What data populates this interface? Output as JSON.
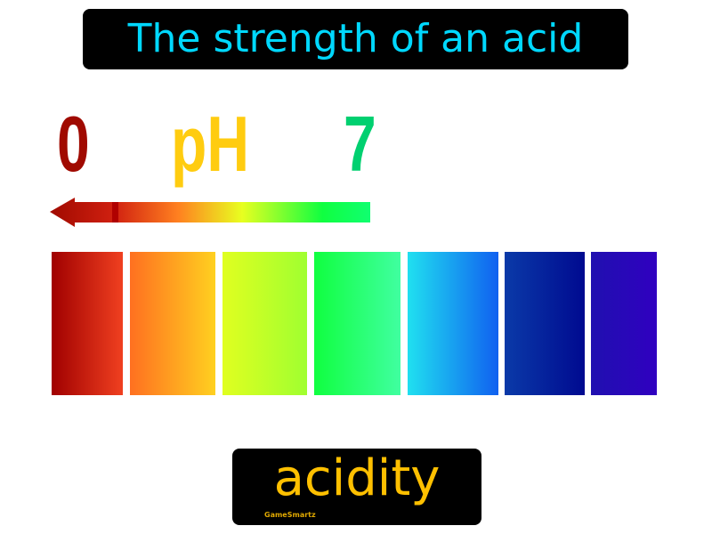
{
  "title": "The strength of an acid",
  "scale": {
    "low_label": "0",
    "center_label": "pH",
    "high_label": "7"
  },
  "arrow": {
    "direction": "left",
    "colors": [
      "#a00a00",
      "#ff6020",
      "#e8ff20",
      "#10ff50"
    ]
  },
  "colors": {
    "title_text": "#00d8ff",
    "term_text": "#ffc000",
    "bars": [
      [
        "#a00000",
        "#f04020"
      ],
      [
        "#ff7020",
        "#ffd020"
      ],
      [
        "#e0ff20",
        "#a0ff30"
      ],
      [
        "#10ff40",
        "#40ffa0"
      ],
      [
        "#20e0f0",
        "#1060f0"
      ],
      [
        "#0a3aa8",
        "#000a90"
      ],
      [
        "#2010b0",
        "#3000c0"
      ]
    ]
  },
  "term": "acidity",
  "brand": "GameSmartz"
}
